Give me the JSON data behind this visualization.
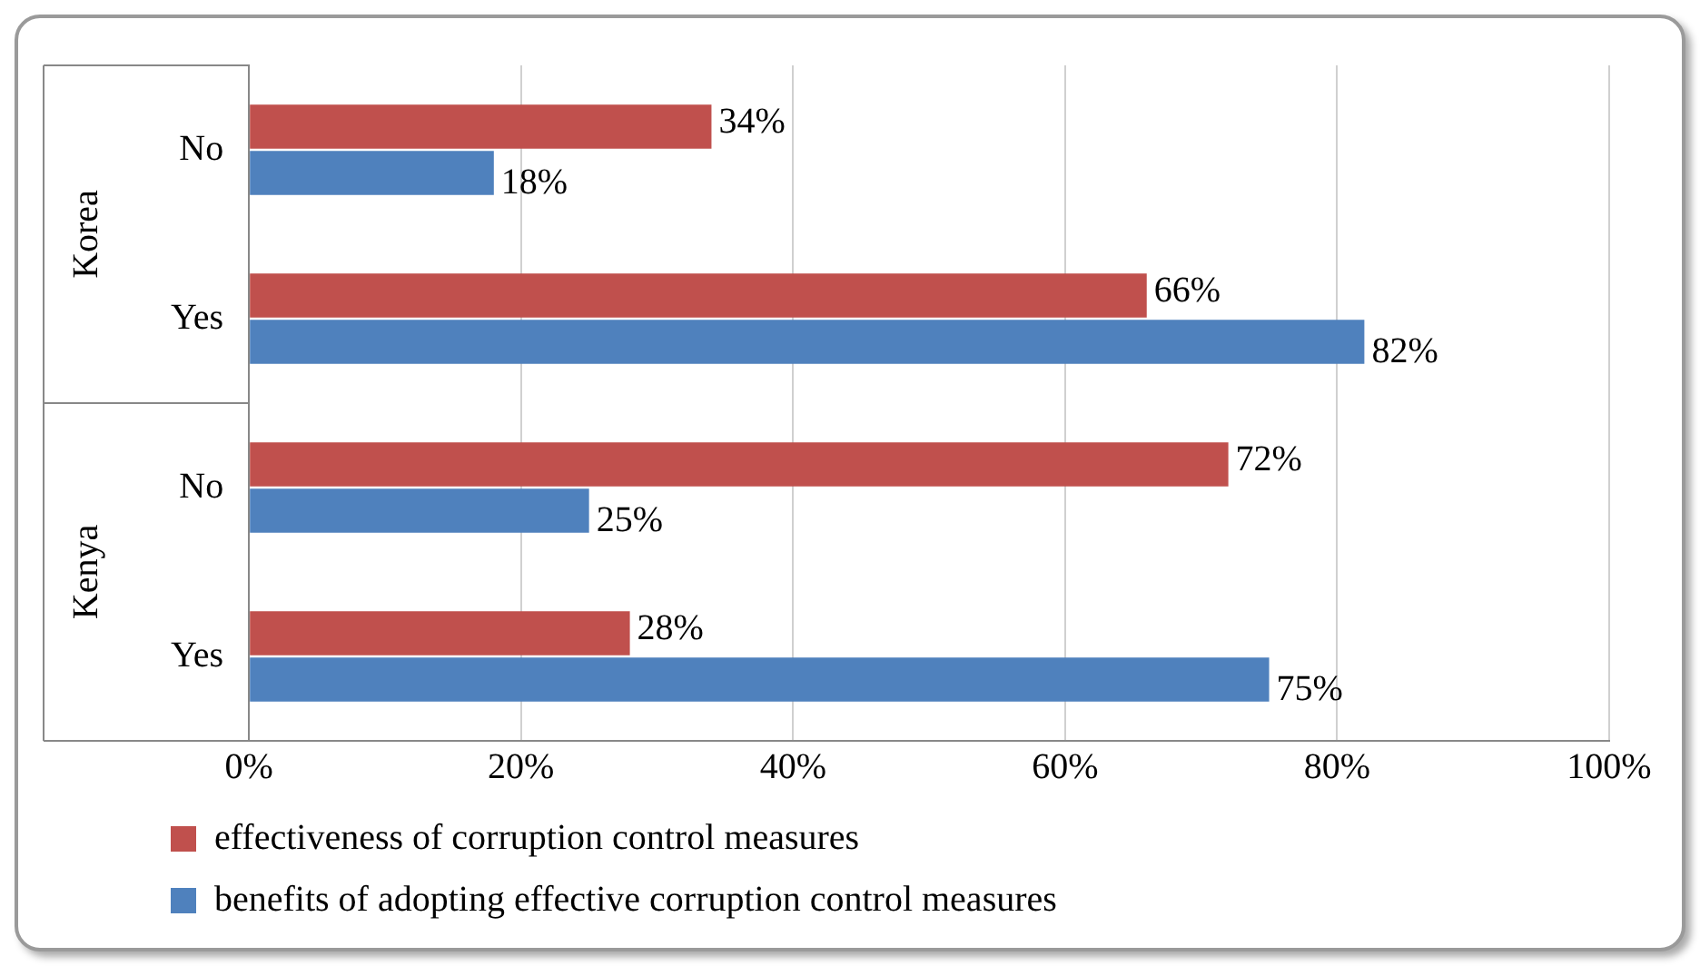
{
  "chart_data": {
    "type": "bar",
    "orientation": "horizontal",
    "categories": [
      "No",
      "Yes",
      "No",
      "Yes"
    ],
    "series": [
      {
        "name": "effectiveness of corruption control measures",
        "color": "#c0504d",
        "values": [
          34,
          66,
          72,
          28
        ],
        "value_labels": [
          "34%",
          "66%",
          "72%",
          "28%"
        ]
      },
      {
        "name": "benefits of adopting effective corruption control measures",
        "color": "#4f81bd",
        "values": [
          18,
          82,
          25,
          75
        ],
        "value_labels": [
          "18%",
          "82%",
          "25%",
          "75%"
        ]
      }
    ],
    "xlim": [
      0,
      100
    ],
    "xticks": [
      {
        "value": 0,
        "label": "0%"
      },
      {
        "value": 20,
        "label": "20%"
      },
      {
        "value": 40,
        "label": "40%"
      },
      {
        "value": 60,
        "label": "60%"
      },
      {
        "value": 80,
        "label": "80%"
      },
      {
        "value": 100,
        "label": "100%"
      }
    ],
    "annotations": [
      "Korea",
      "Kenya"
    ],
    "grid": "x",
    "legend": "bottom"
  }
}
